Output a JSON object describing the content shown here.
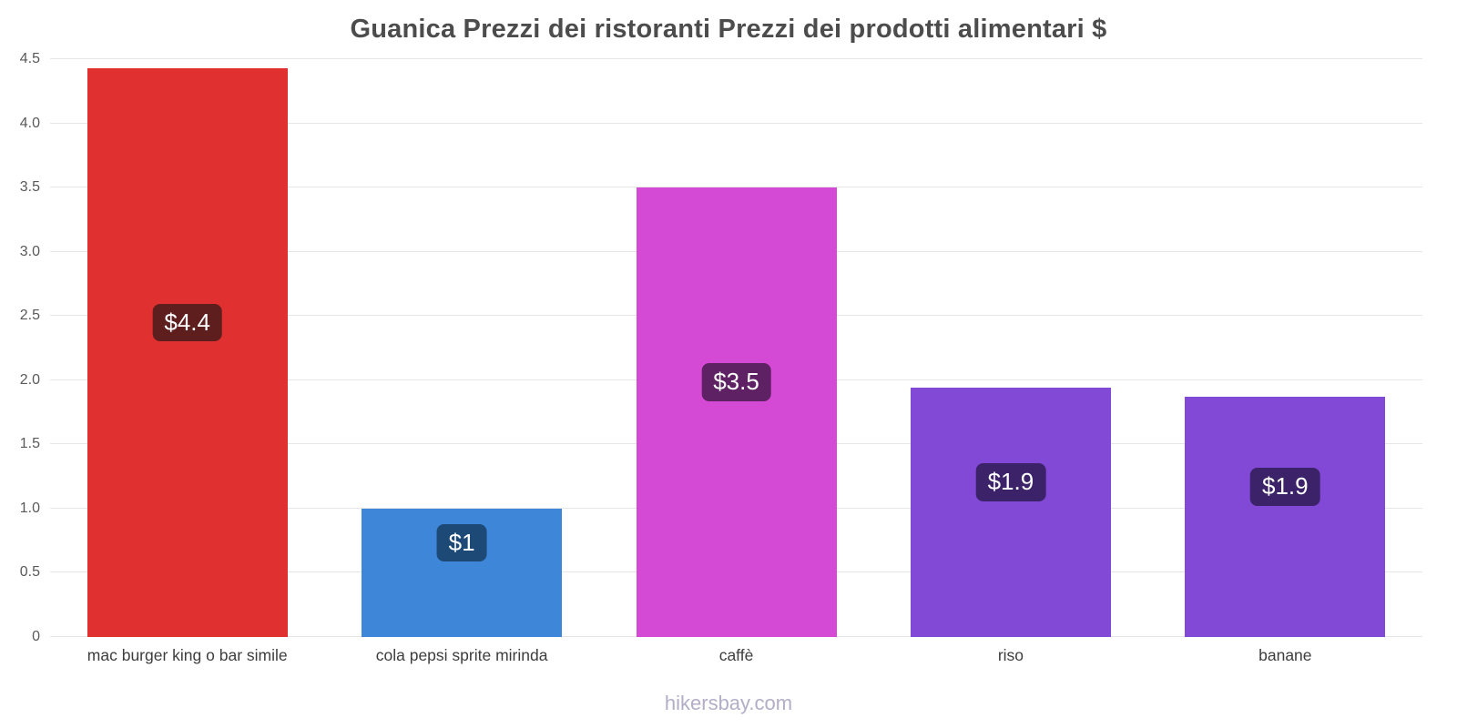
{
  "title": "Guanica Prezzi dei ristoranti Prezzi dei prodotti alimentari $",
  "footer": "hikersbay.com",
  "chart_data": {
    "type": "bar",
    "title": "Guanica Prezzi dei ristoranti Prezzi dei prodotti alimentari $",
    "categories": [
      "mac burger king o bar simile",
      "cola pepsi sprite mirinda",
      "caffè",
      "riso",
      "banane"
    ],
    "values": [
      4.43,
      1.0,
      3.5,
      1.94,
      1.87
    ],
    "value_labels": [
      "$4.4",
      "$1",
      "$3.5",
      "$1.9",
      "$1.9"
    ],
    "bar_colors": [
      "#e03030",
      "#3d86d8",
      "#d44ad4",
      "#8149d6",
      "#8149d6"
    ],
    "label_bg_colors": [
      "#5e1e1e",
      "#1d4976",
      "#5e2163",
      "#3c2369",
      "#3c2369"
    ],
    "xlabel": "",
    "ylabel": "",
    "ylim": [
      0,
      4.5
    ],
    "ytick_step": 0.5,
    "grid": true,
    "legend": false
  }
}
